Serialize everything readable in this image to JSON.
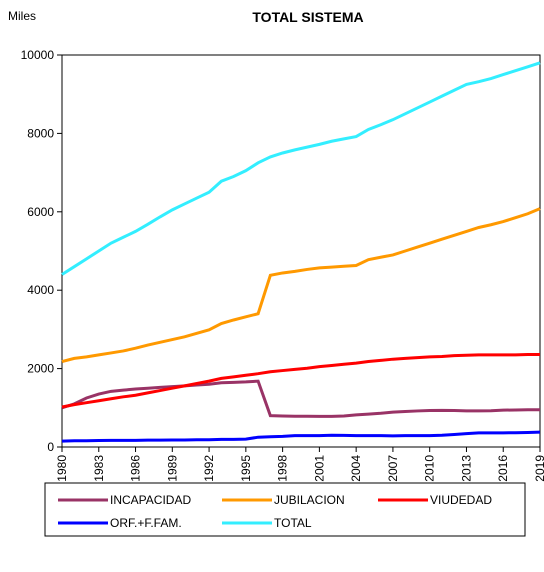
{
  "chart_data": {
    "type": "line",
    "title": "TOTAL SISTEMA",
    "y_label": "Miles",
    "x": [
      1980,
      1981,
      1982,
      1983,
      1984,
      1985,
      1986,
      1987,
      1988,
      1989,
      1990,
      1991,
      1992,
      1993,
      1994,
      1995,
      1996,
      1997,
      1998,
      1999,
      2000,
      2001,
      2002,
      2003,
      2004,
      2005,
      2006,
      2007,
      2008,
      2009,
      2010,
      2011,
      2012,
      2013,
      2014,
      2015,
      2016,
      2017,
      2018,
      2019
    ],
    "xlim": [
      1980,
      2019
    ],
    "xticks": [
      1980,
      1983,
      1986,
      1989,
      1992,
      1995,
      1998,
      2001,
      2004,
      2007,
      2010,
      2013,
      2016,
      2019
    ],
    "ylim": [
      0,
      10000
    ],
    "yticks": [
      0,
      2000,
      4000,
      6000,
      8000,
      10000
    ],
    "series": [
      {
        "name": "INCAPACIDAD",
        "color": "#993366",
        "values": [
          1000,
          1100,
          1250,
          1350,
          1420,
          1450,
          1480,
          1500,
          1520,
          1540,
          1560,
          1580,
          1600,
          1640,
          1650,
          1660,
          1680,
          800,
          790,
          785,
          785,
          780,
          780,
          790,
          820,
          840,
          860,
          890,
          905,
          920,
          930,
          935,
          930,
          920,
          920,
          925,
          940,
          945,
          950,
          950
        ]
      },
      {
        "name": "JUBILACION",
        "color": "#FF9900",
        "values": [
          2180,
          2260,
          2300,
          2350,
          2400,
          2450,
          2520,
          2600,
          2670,
          2740,
          2810,
          2900,
          2990,
          3150,
          3240,
          3320,
          3400,
          4380,
          4440,
          4480,
          4530,
          4570,
          4590,
          4610,
          4630,
          4780,
          4840,
          4900,
          5000,
          5100,
          5200,
          5300,
          5400,
          5500,
          5600,
          5670,
          5750,
          5850,
          5950,
          6080
        ]
      },
      {
        "name": "VIUDEDAD",
        "color": "#FF0000",
        "values": [
          1020,
          1080,
          1130,
          1180,
          1230,
          1280,
          1320,
          1380,
          1440,
          1500,
          1560,
          1620,
          1680,
          1750,
          1790,
          1830,
          1870,
          1920,
          1950,
          1980,
          2010,
          2050,
          2080,
          2110,
          2140,
          2180,
          2210,
          2240,
          2260,
          2280,
          2300,
          2310,
          2330,
          2340,
          2350,
          2350,
          2350,
          2350,
          2360,
          2360
        ]
      },
      {
        "name": "ORF.+F.FAM.",
        "color": "#0000FF",
        "values": [
          150,
          160,
          160,
          165,
          170,
          170,
          170,
          175,
          175,
          180,
          180,
          185,
          185,
          195,
          195,
          200,
          250,
          260,
          270,
          290,
          290,
          290,
          300,
          295,
          290,
          290,
          290,
          285,
          290,
          290,
          290,
          300,
          320,
          340,
          360,
          360,
          360,
          365,
          370,
          380
        ]
      },
      {
        "name": "TOTAL",
        "color": "#33EEFF",
        "values": [
          4400,
          4600,
          4800,
          5000,
          5200,
          5350,
          5500,
          5680,
          5870,
          6050,
          6200,
          6350,
          6500,
          6780,
          6900,
          7050,
          7250,
          7400,
          7500,
          7580,
          7650,
          7720,
          7800,
          7860,
          7920,
          8100,
          8220,
          8350,
          8500,
          8650,
          8800,
          8950,
          9100,
          9250,
          9320,
          9400,
          9500,
          9600,
          9700,
          9800
        ]
      }
    ]
  }
}
